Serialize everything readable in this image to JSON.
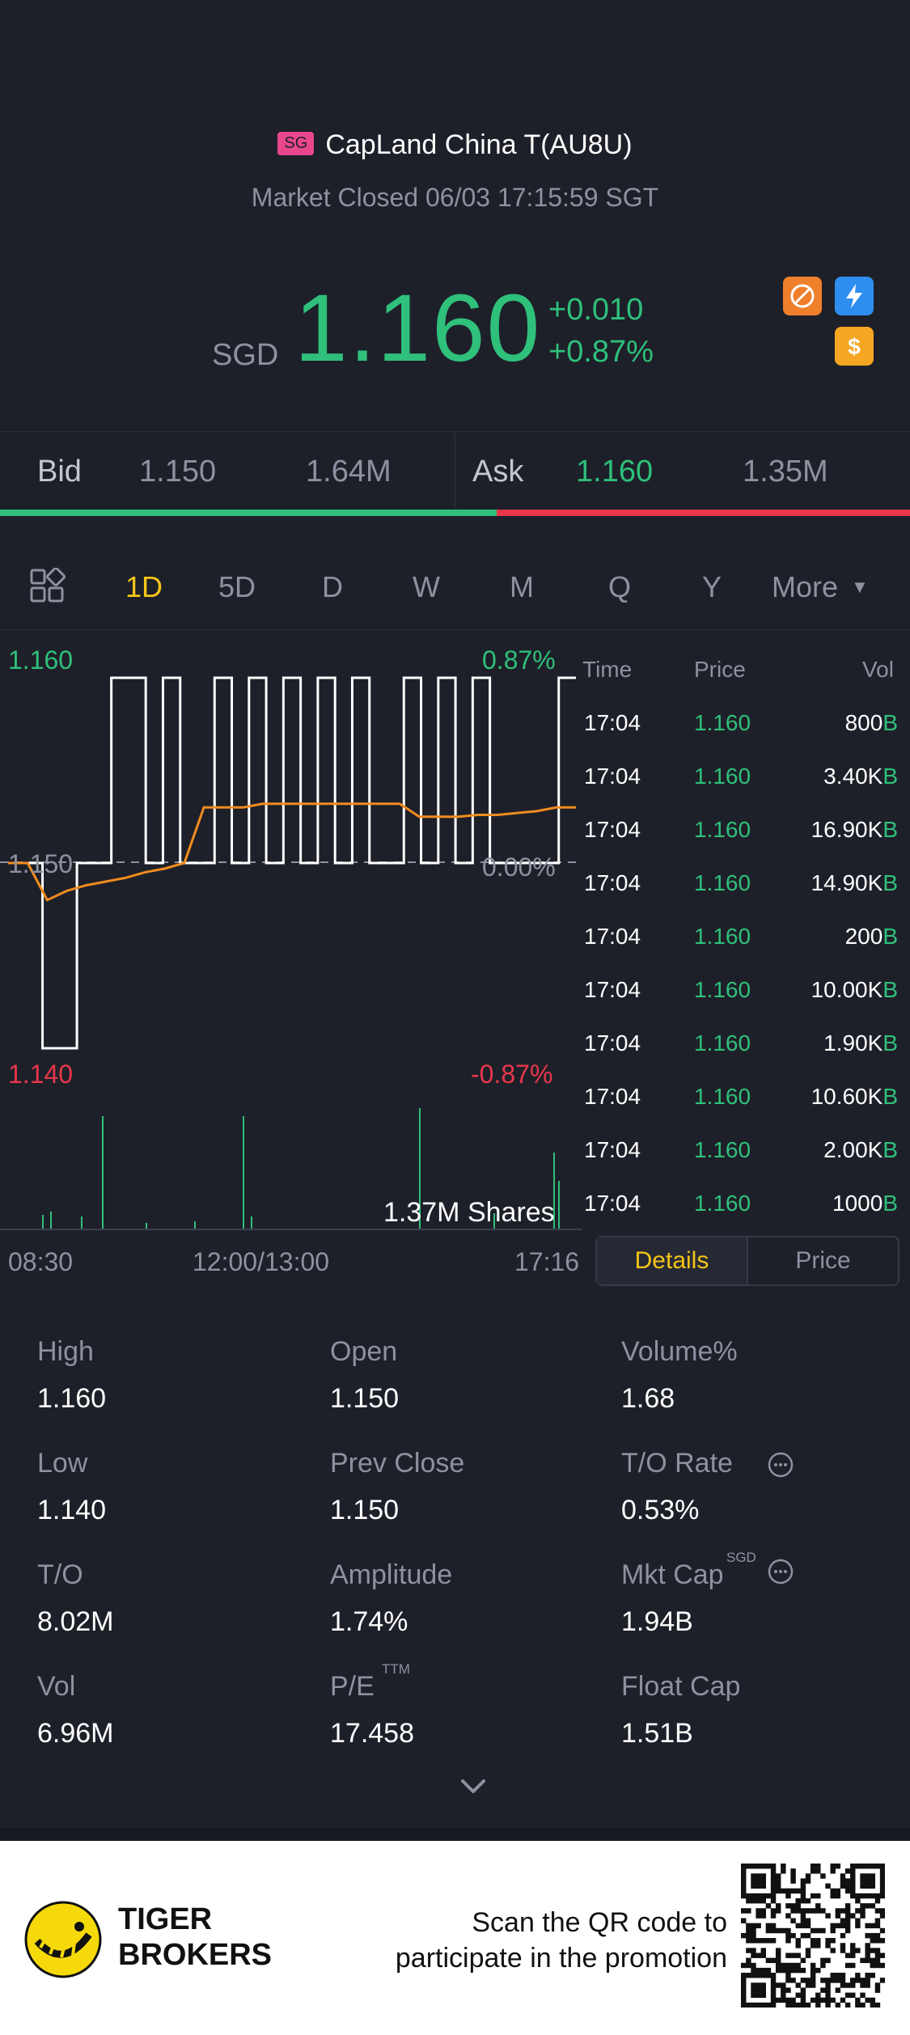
{
  "header": {
    "market_badge": "SG",
    "title": "CapLand China T(AU8U)",
    "status": "Market Closed 06/03 17:15:59 SGT"
  },
  "quote": {
    "currency": "SGD",
    "price": "1.160",
    "change": "+0.010",
    "change_pct": "+0.87%",
    "up_color": "#2fc07b",
    "down_color": "#e8374b"
  },
  "bid_ask": {
    "bid_label": "Bid",
    "bid_price": "1.150",
    "bid_size": "1.64M",
    "ask_label": "Ask",
    "ask_price": "1.160",
    "ask_size": "1.35M",
    "bid_ratio": 0.546
  },
  "period_tabs": [
    "1D",
    "5D",
    "D",
    "W",
    "M",
    "Q",
    "Y",
    "More"
  ],
  "active_tab": "1D",
  "intraday": {
    "y_high": "1.160",
    "y_mid": "1.150",
    "y_low": "1.140",
    "pct_high": "0.87%",
    "pct_mid": "0.00%",
    "pct_low": "-0.87%",
    "volume_label": "1.37M Shares",
    "x_start": "08:30",
    "x_mid": "12:00/13:00",
    "x_end": "17:16"
  },
  "chart_data": {
    "type": "line",
    "title": "",
    "ylim": [
      1.14,
      1.16
    ],
    "series": [
      {
        "values": [
          1.15,
          1.15,
          1.14,
          1.14,
          1.15,
          1.15,
          1.16,
          1.16,
          1.15,
          1.16,
          1.15,
          1.15,
          1.16,
          1.15,
          1.16,
          1.15,
          1.16,
          1.15,
          1.16,
          1.15,
          1.16,
          1.15,
          1.15,
          1.16,
          1.15,
          1.16,
          1.15,
          1.16,
          1.15,
          1.15,
          1.15,
          1.15,
          1.16,
          1.16
        ]
      },
      {
        "values": [
          1.15,
          1.15,
          1.148,
          1.1485,
          1.1488,
          1.149,
          1.1492,
          1.1495,
          1.1497,
          1.15,
          1.153,
          1.153,
          1.153,
          1.1532,
          1.1532,
          1.1532,
          1.1532,
          1.1532,
          1.1532,
          1.1532,
          1.1532,
          1.1525,
          1.1525,
          1.1525,
          1.1526,
          1.1526,
          1.1527,
          1.1528,
          1.153,
          1.153
        ]
      }
    ]
  },
  "trades": {
    "headers": [
      "Time",
      "Price",
      "Vol"
    ],
    "side_marker": "B",
    "rows": [
      {
        "time": "17:04",
        "price": "1.160",
        "vol": "800"
      },
      {
        "time": "17:04",
        "price": "1.160",
        "vol": "3.40K"
      },
      {
        "time": "17:04",
        "price": "1.160",
        "vol": "16.90K"
      },
      {
        "time": "17:04",
        "price": "1.160",
        "vol": "14.90K"
      },
      {
        "time": "17:04",
        "price": "1.160",
        "vol": "200"
      },
      {
        "time": "17:04",
        "price": "1.160",
        "vol": "10.00K"
      },
      {
        "time": "17:04",
        "price": "1.160",
        "vol": "1.90K"
      },
      {
        "time": "17:04",
        "price": "1.160",
        "vol": "10.60K"
      },
      {
        "time": "17:04",
        "price": "1.160",
        "vol": "2.00K"
      },
      {
        "time": "17:04",
        "price": "1.160",
        "vol": "1000"
      }
    ]
  },
  "segment": {
    "details": "Details",
    "price": "Price",
    "active": "Details"
  },
  "stats": {
    "high": {
      "label": "High",
      "value": "1.160"
    },
    "open": {
      "label": "Open",
      "value": "1.150"
    },
    "volume_pct": {
      "label": "Volume%",
      "value": "1.68"
    },
    "low": {
      "label": "Low",
      "value": "1.140"
    },
    "prev_close": {
      "label": "Prev Close",
      "value": "1.150"
    },
    "to_rate": {
      "label": "T/O Rate",
      "value": "0.53%"
    },
    "to": {
      "label": "T/O",
      "value": "8.02M"
    },
    "amplitude": {
      "label": "Amplitude",
      "value": "1.74%"
    },
    "mkt_cap": {
      "label": "Mkt Cap",
      "superscript": "SGD",
      "value": "1.94B"
    },
    "vol": {
      "label": "Vol",
      "value": "6.96M"
    },
    "pe": {
      "label": "P/E",
      "superscript": "TTM",
      "value": "17.458"
    },
    "float_cap": {
      "label": "Float Cap",
      "value": "1.51B"
    }
  },
  "footer": {
    "brand_line1": "TIGER",
    "brand_line2": "BROKERS",
    "promo_line1": "Scan the QR code to",
    "promo_line2": "participate in the promotion"
  }
}
